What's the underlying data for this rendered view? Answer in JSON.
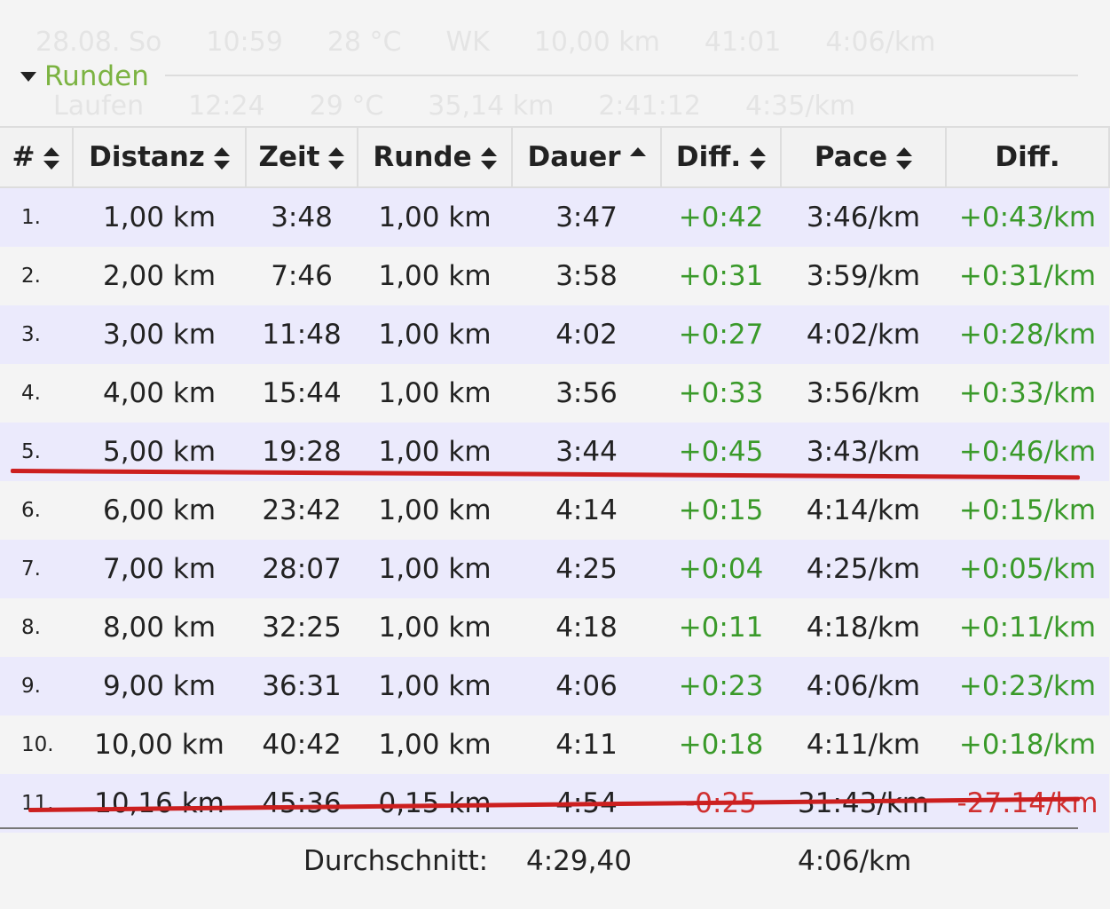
{
  "background": [
    [
      "28.08. So",
      "10:59",
      "28 °C",
      "WK",
      "10,00 km",
      "41:01",
      "4:06/km"
    ],
    [
      "Laufen",
      "12:24",
      "29 °C",
      "35,14 km",
      "2:41:12",
      "4:35/km"
    ]
  ],
  "section": {
    "title": "Runden"
  },
  "table": {
    "headers": [
      "#",
      "Distanz",
      "Zeit",
      "Runde",
      "Dauer",
      "Diff.",
      "Pace",
      "Diff."
    ],
    "rows": [
      [
        "1.",
        "1,00 km",
        "3:48",
        "1,00 km",
        "3:47",
        "+0:42",
        "3:46/km",
        "+0:43/km"
      ],
      [
        "2.",
        "2,00 km",
        "7:46",
        "1,00 km",
        "3:58",
        "+0:31",
        "3:59/km",
        "+0:31/km"
      ],
      [
        "3.",
        "3,00 km",
        "11:48",
        "1,00 km",
        "4:02",
        "+0:27",
        "4:02/km",
        "+0:28/km"
      ],
      [
        "4.",
        "4,00 km",
        "15:44",
        "1,00 km",
        "3:56",
        "+0:33",
        "3:56/km",
        "+0:33/km"
      ],
      [
        "5.",
        "5,00 km",
        "19:28",
        "1,00 km",
        "3:44",
        "+0:45",
        "3:43/km",
        "+0:46/km"
      ],
      [
        "6.",
        "6,00 km",
        "23:42",
        "1,00 km",
        "4:14",
        "+0:15",
        "4:14/km",
        "+0:15/km"
      ],
      [
        "7.",
        "7,00 km",
        "28:07",
        "1,00 km",
        "4:25",
        "+0:04",
        "4:25/km",
        "+0:05/km"
      ],
      [
        "8.",
        "8,00 km",
        "32:25",
        "1,00 km",
        "4:18",
        "+0:11",
        "4:18/km",
        "+0:11/km"
      ],
      [
        "9.",
        "9,00 km",
        "36:31",
        "1,00 km",
        "4:06",
        "+0:23",
        "4:06/km",
        "+0:23/km"
      ],
      [
        "10.",
        "10,00 km",
        "40:42",
        "1,00 km",
        "4:11",
        "+0:18",
        "4:11/km",
        "+0:18/km"
      ],
      [
        "11.",
        "10,16 km",
        "45:36",
        "0,15 km",
        "4:54",
        "-0:25",
        "31:43/km",
        "-27:14/km"
      ]
    ],
    "footer": {
      "label": "Durchschnitt:",
      "dauer": "4:29,40",
      "pace": "4:06/km"
    }
  }
}
